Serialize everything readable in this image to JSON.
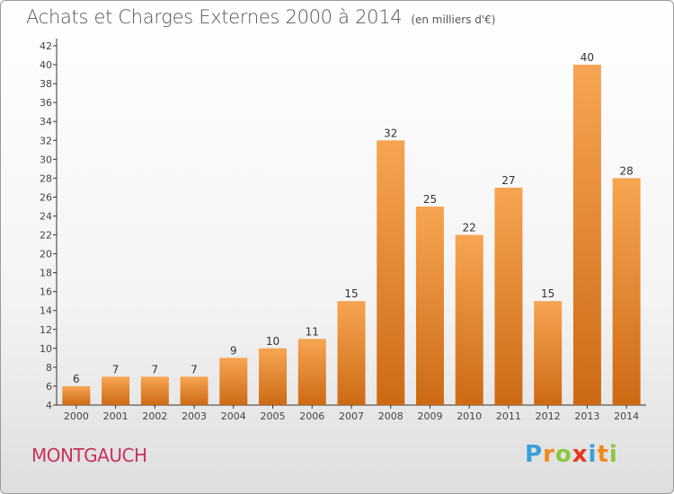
{
  "title": "Achats et Charges Externes 2000 à 2014",
  "unit_label": "(en milliers d'€)",
  "commune": "MONTGAUCH",
  "logo": {
    "letters": [
      "P",
      "r",
      "o",
      "x",
      "i",
      "t",
      "i"
    ],
    "colors": [
      "#3aa0d8",
      "#f08a1c",
      "#8cc63f",
      "#e8371c",
      "#3aa0d8",
      "#f08a1c",
      "#8cc63f"
    ]
  },
  "chart_data": {
    "type": "bar",
    "title": "Achats et Charges Externes 2000 à 2014",
    "subtitle": "(en milliers d'€)",
    "xlabel": "",
    "ylabel": "",
    "categories": [
      "2000",
      "2001",
      "2002",
      "2003",
      "2004",
      "2005",
      "2006",
      "2007",
      "2008",
      "2009",
      "2010",
      "2011",
      "2012",
      "2013",
      "2014"
    ],
    "values": [
      6,
      7,
      7,
      7,
      9,
      10,
      11,
      15,
      32,
      25,
      22,
      27,
      15,
      40,
      28
    ],
    "ylim": [
      4,
      42
    ],
    "yticks": [
      4,
      6,
      8,
      10,
      12,
      14,
      16,
      18,
      20,
      22,
      24,
      26,
      28,
      30,
      32,
      34,
      36,
      38,
      40,
      42
    ],
    "grid": false,
    "bar_color": "#f59a45",
    "bar_color_dark": "#c96410"
  }
}
